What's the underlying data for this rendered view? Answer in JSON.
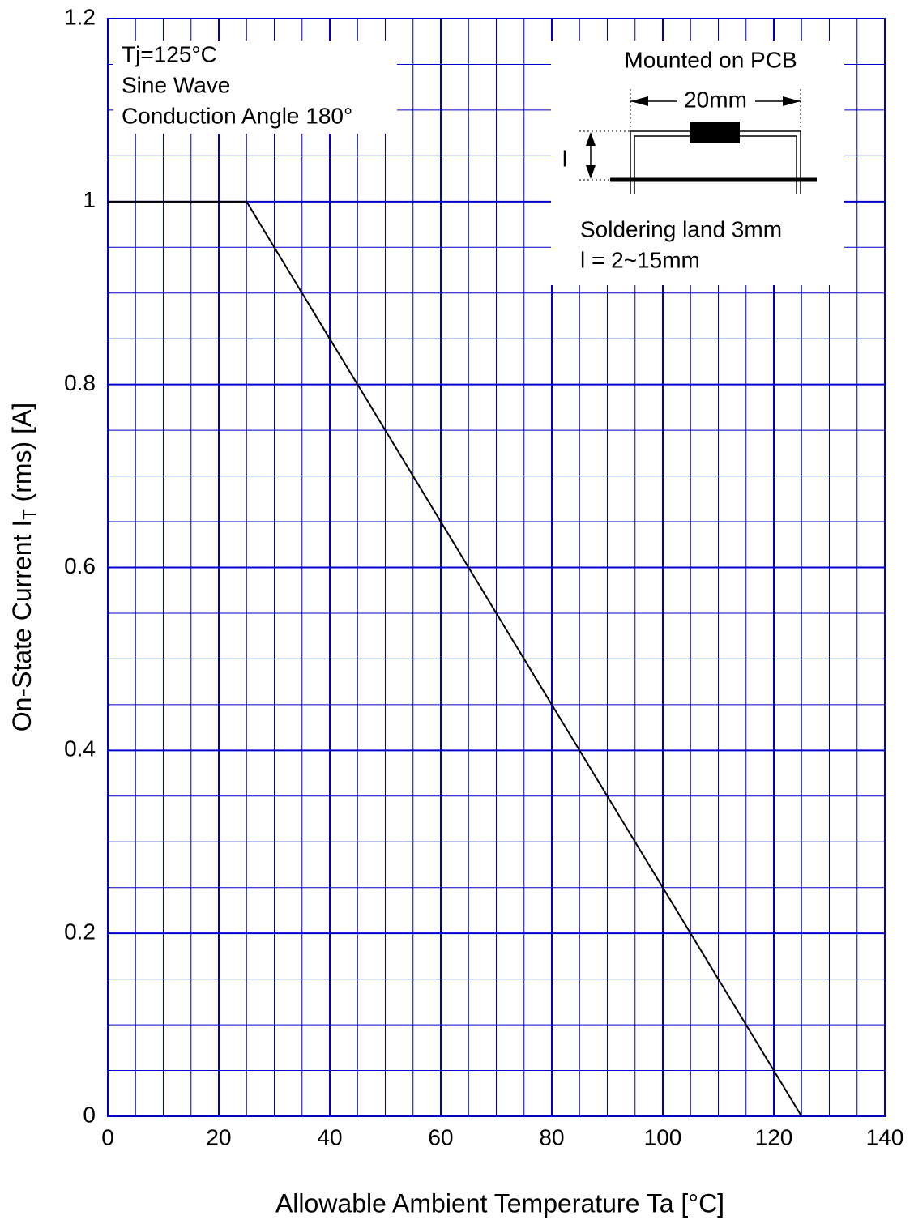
{
  "chart_data": {
    "type": "line",
    "xlabel": "Allowable Ambient Temperature  Ta  [°C]",
    "ylabel": {
      "main": "On-State Current  I",
      "sub": "T",
      "rest": " (rms)  [A]"
    },
    "x": [
      0,
      25,
      125
    ],
    "series": [
      {
        "color": "#000000",
        "values": [
          1,
          1,
          0
        ]
      }
    ],
    "xlim": [
      0,
      140
    ],
    "ylim": [
      0,
      1.2
    ],
    "xticks": [
      0,
      20,
      40,
      60,
      80,
      100,
      120,
      140
    ],
    "yticks": [
      0,
      0.2,
      0.4,
      0.6,
      0.8,
      1,
      1.2
    ],
    "grid": true,
    "grid_color": "#0000cc",
    "minor_grid_divisions": 4,
    "annotations": {
      "conditions": [
        "Tj=125°C",
        "Sine Wave",
        "Conduction  Angle  180°"
      ],
      "mounting": {
        "title": "Mounted on PCB",
        "length": "20mm",
        "height_symbol": "l",
        "land": "Soldering  land  3mm",
        "range": "l  =  2~15mm"
      }
    }
  }
}
